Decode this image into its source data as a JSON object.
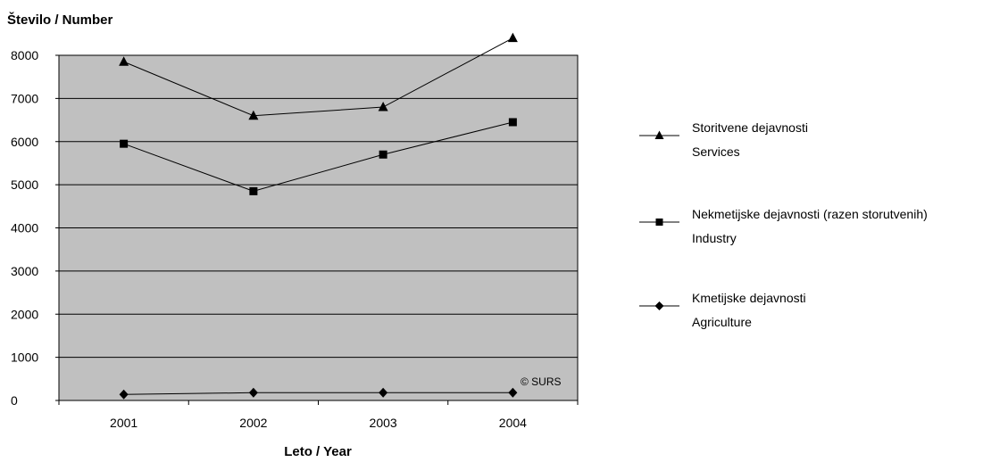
{
  "chart_data": {
    "type": "line",
    "ylabel": "Število / Number",
    "xlabel": "Leto / Year",
    "categories": [
      "2001",
      "2002",
      "2003",
      "2004"
    ],
    "ylim": [
      0,
      8000
    ],
    "yticks": [
      0,
      1000,
      2000,
      3000,
      4000,
      5000,
      6000,
      7000,
      8000
    ],
    "grid": true,
    "legend_position": "right",
    "annotation": "© SURS",
    "series": [
      {
        "name": "Storitvene dejavnosti",
        "name_en": "Services",
        "marker": "triangle",
        "values": [
          7850,
          6600,
          6800,
          8400
        ]
      },
      {
        "name": "Nekmetijske dejavnosti (razen storutvenih)",
        "name_en": "Industry",
        "marker": "square",
        "values": [
          5950,
          4850,
          5700,
          6450
        ]
      },
      {
        "name": "Kmetijske dejavnosti",
        "name_en": "Agriculture",
        "marker": "diamond",
        "values": [
          140,
          180,
          180,
          180
        ]
      }
    ]
  }
}
